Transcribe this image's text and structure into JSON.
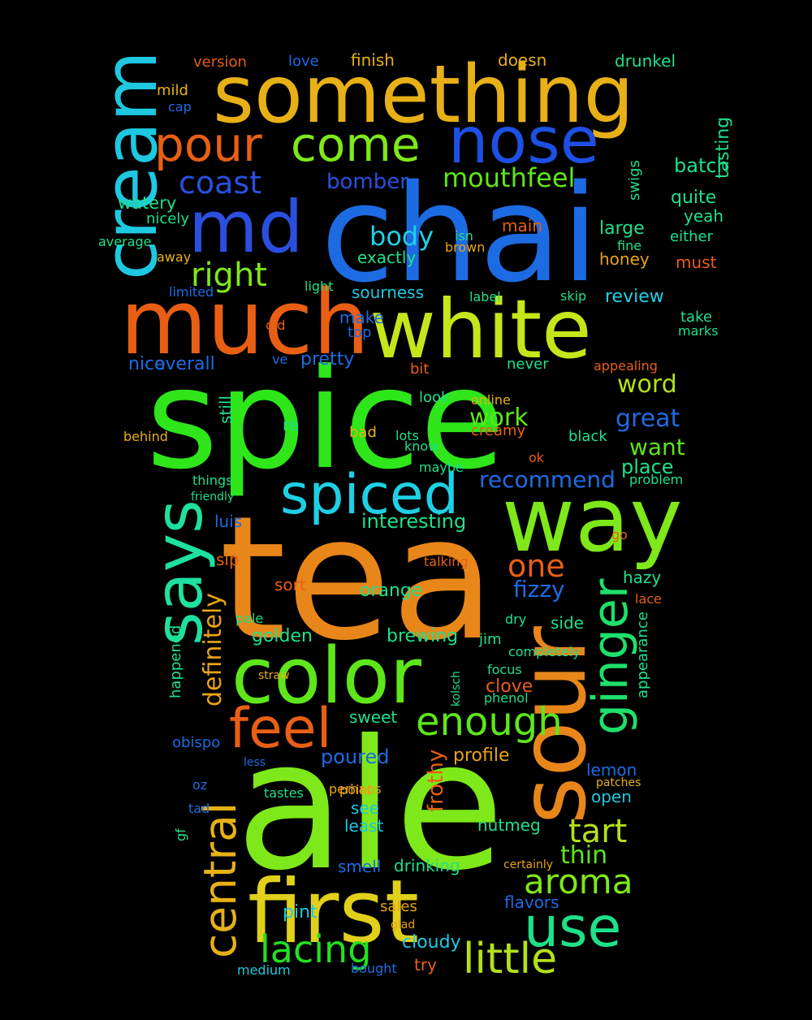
{
  "word_cloud": {
    "palette": [
      "#e8a317",
      "#e85f14",
      "#2a4fe0",
      "#1d6be3",
      "#7ee81a",
      "#22e022",
      "#1ec8e0",
      "#1ee08a",
      "#e0c81a",
      "#b4e01a"
    ],
    "words": [
      {
        "text": "tea",
        "color": "#e8861a"
      },
      {
        "text": "ale",
        "color": "#7ee81a"
      },
      {
        "text": "spice",
        "color": "#2ee61a"
      },
      {
        "text": "chai",
        "color": "#1d6be3"
      },
      {
        "text": "something",
        "color": "#e8b017"
      },
      {
        "text": "much",
        "color": "#e85f14"
      },
      {
        "text": "white",
        "color": "#c4e61a"
      },
      {
        "text": "way",
        "color": "#7ee81a"
      },
      {
        "text": "sour",
        "color": "#e8861a"
      },
      {
        "text": "first",
        "color": "#e0d01a"
      },
      {
        "text": "color",
        "color": "#5ee61a"
      },
      {
        "text": "cream",
        "color": "#1ec8e0"
      },
      {
        "text": "says",
        "color": "#1ee0a0"
      },
      {
        "text": "md",
        "color": "#2a4fe0"
      },
      {
        "text": "nose",
        "color": "#1d4fe3"
      },
      {
        "text": "spiced",
        "color": "#1ed0e6"
      },
      {
        "text": "use",
        "color": "#1ee08a"
      },
      {
        "text": "ginger",
        "color": "#1ee06a"
      },
      {
        "text": "central",
        "color": "#e8b017"
      },
      {
        "text": "feel",
        "color": "#e85f14"
      },
      {
        "text": "pour",
        "color": "#e85f14"
      },
      {
        "text": "come",
        "color": "#7ee81a"
      },
      {
        "text": "little",
        "color": "#b4e01a"
      },
      {
        "text": "enough",
        "color": "#5ee61a"
      },
      {
        "text": "lacing",
        "color": "#22e022"
      },
      {
        "text": "aroma",
        "color": "#7ee81a"
      },
      {
        "text": "right",
        "color": "#7ee81a"
      },
      {
        "text": "coast",
        "color": "#2a4fe0"
      },
      {
        "text": "mouthfeel",
        "color": "#5ee61a"
      },
      {
        "text": "one",
        "color": "#e85f14"
      },
      {
        "text": "recommend",
        "color": "#1d6be3"
      },
      {
        "text": "definitely",
        "color": "#e8a317"
      },
      {
        "text": "tart",
        "color": "#b4e01a"
      },
      {
        "text": "great",
        "color": "#1d6be3"
      },
      {
        "text": "want",
        "color": "#5ee61a"
      },
      {
        "text": "tasting",
        "color": "#1ee08a"
      },
      {
        "text": "thin",
        "color": "#5ee61a"
      },
      {
        "text": "work",
        "color": "#5ee61a"
      },
      {
        "text": "bomber",
        "color": "#2a4fe0"
      },
      {
        "text": "fizzy",
        "color": "#1d6be3"
      },
      {
        "text": "word",
        "color": "#b4e01a"
      },
      {
        "text": "body",
        "color": "#1ed0e6"
      },
      {
        "text": "interesting",
        "color": "#1ee08a"
      },
      {
        "text": "frothy",
        "color": "#e85f14"
      },
      {
        "text": "brewing",
        "color": "#1ee08a"
      },
      {
        "text": "pint",
        "color": "#1ec8e0"
      },
      {
        "text": "cloudy",
        "color": "#1ec8e0"
      },
      {
        "text": "batch",
        "color": "#1ee08a"
      },
      {
        "text": "poured",
        "color": "#1d6be3"
      },
      {
        "text": "sweet",
        "color": "#1ee08a"
      },
      {
        "text": "orange",
        "color": "#1ee08a"
      },
      {
        "text": "golden",
        "color": "#1ee08a"
      },
      {
        "text": "drinking",
        "color": "#1ee08a"
      },
      {
        "text": "nice",
        "color": "#1d6be3"
      },
      {
        "text": "overall",
        "color": "#1d6be3"
      },
      {
        "text": "pretty",
        "color": "#1d6be3"
      },
      {
        "text": "review",
        "color": "#1ed0e6"
      },
      {
        "text": "place",
        "color": "#1ee08a"
      },
      {
        "text": "large",
        "color": "#1ee08a"
      },
      {
        "text": "quite",
        "color": "#1ee08a"
      },
      {
        "text": "yeah",
        "color": "#1ee08a"
      },
      {
        "text": "watery",
        "color": "#1ee08a"
      },
      {
        "text": "nicely",
        "color": "#1ee08a"
      },
      {
        "text": "average",
        "color": "#1ee08a"
      },
      {
        "text": "exactly",
        "color": "#1ee08a"
      },
      {
        "text": "sourness",
        "color": "#1ec8e0"
      },
      {
        "text": "make",
        "color": "#1d6be3"
      },
      {
        "text": "clove",
        "color": "#e85f14"
      },
      {
        "text": "profile",
        "color": "#e8a317"
      },
      {
        "text": "smell",
        "color": "#1d6be3"
      },
      {
        "text": "flavors",
        "color": "#1d6be3"
      },
      {
        "text": "sales",
        "color": "#e8a317"
      },
      {
        "text": "see",
        "color": "#1ec8e0"
      },
      {
        "text": "least",
        "color": "#1ec8e0"
      },
      {
        "text": "nutmeg",
        "color": "#1ee08a"
      },
      {
        "text": "lemon",
        "color": "#1d6be3"
      },
      {
        "text": "open",
        "color": "#1ec8e0"
      },
      {
        "text": "try",
        "color": "#e85f14"
      },
      {
        "text": "bought",
        "color": "#1d6be3"
      },
      {
        "text": "medium",
        "color": "#1ec8e0"
      },
      {
        "text": "obispo",
        "color": "#1d6be3"
      },
      {
        "text": "happened",
        "color": "#1ee08a"
      },
      {
        "text": "appearance",
        "color": "#1ee08a"
      },
      {
        "text": "hazy",
        "color": "#1ee08a"
      },
      {
        "text": "side",
        "color": "#1ee08a"
      },
      {
        "text": "sip",
        "color": "#e85f14"
      },
      {
        "text": "sort",
        "color": "#e85f14"
      },
      {
        "text": "luis",
        "color": "#1d6be3"
      },
      {
        "text": "finish",
        "color": "#e8b017"
      },
      {
        "text": "doesn",
        "color": "#e8b017"
      },
      {
        "text": "drunkel",
        "color": "#1ee08a"
      },
      {
        "text": "love",
        "color": "#1d6be3"
      },
      {
        "text": "version",
        "color": "#e85f14"
      },
      {
        "text": "mild",
        "color": "#e8b017"
      },
      {
        "text": "cap",
        "color": "#1d6be3"
      },
      {
        "text": "swigs",
        "color": "#1ee08a"
      },
      {
        "text": "main",
        "color": "#e85f14"
      },
      {
        "text": "honey",
        "color": "#e8a317"
      },
      {
        "text": "must",
        "color": "#e85f14"
      },
      {
        "text": "either",
        "color": "#1ee08a"
      },
      {
        "text": "fine",
        "color": "#1ee08a"
      },
      {
        "text": "isn",
        "color": "#1ee08a"
      },
      {
        "text": "brown",
        "color": "#e8a317"
      },
      {
        "text": "light",
        "color": "#1ee08a"
      },
      {
        "text": "limited",
        "color": "#1d6be3"
      },
      {
        "text": "away",
        "color": "#e8b017"
      },
      {
        "text": "top",
        "color": "#1d6be3"
      },
      {
        "text": "old",
        "color": "#e85f14"
      },
      {
        "text": "bit",
        "color": "#e85f14"
      },
      {
        "text": "never",
        "color": "#1ee08a"
      },
      {
        "text": "appealing",
        "color": "#e85f14"
      },
      {
        "text": "take",
        "color": "#1ee08a"
      },
      {
        "text": "marks",
        "color": "#1ee08a"
      },
      {
        "text": "skip",
        "color": "#1ee08a"
      },
      {
        "text": "label",
        "color": "#1ee08a"
      },
      {
        "text": "still",
        "color": "#1ee08a"
      },
      {
        "text": "re",
        "color": "#1ee08a"
      },
      {
        "text": "ve",
        "color": "#1d6be3"
      },
      {
        "text": "look",
        "color": "#1ee08a"
      },
      {
        "text": "online",
        "color": "#e8b017"
      },
      {
        "text": "creamy",
        "color": "#e85f14"
      },
      {
        "text": "black",
        "color": "#1ee08a"
      },
      {
        "text": "bad",
        "color": "#e8b017"
      },
      {
        "text": "lots",
        "color": "#1ee08a"
      },
      {
        "text": "know",
        "color": "#1ee08a"
      },
      {
        "text": "behind",
        "color": "#e8b017"
      },
      {
        "text": "things",
        "color": "#1ee08a"
      },
      {
        "text": "friendly",
        "color": "#1ee08a"
      },
      {
        "text": "maybe",
        "color": "#1ee08a"
      },
      {
        "text": "problem",
        "color": "#1ee08a"
      },
      {
        "text": "ok",
        "color": "#e85f14"
      },
      {
        "text": "go",
        "color": "#e85f14"
      },
      {
        "text": "lace",
        "color": "#e85f14"
      },
      {
        "text": "dry",
        "color": "#1ee08a"
      },
      {
        "text": "jim",
        "color": "#1ee08a"
      },
      {
        "text": "completely",
        "color": "#1ee08a"
      },
      {
        "text": "focus",
        "color": "#1ee08a"
      },
      {
        "text": "phenol",
        "color": "#1ee08a"
      },
      {
        "text": "talking",
        "color": "#e85f14"
      },
      {
        "text": "pale",
        "color": "#1ee08a"
      },
      {
        "text": "perhaps",
        "color": "#e8a317"
      },
      {
        "text": "point",
        "color": "#e8a317"
      },
      {
        "text": "tastes",
        "color": "#1ee08a"
      },
      {
        "text": "less",
        "color": "#1d6be3"
      },
      {
        "text": "tad",
        "color": "#1d6be3"
      },
      {
        "text": "oz",
        "color": "#1d6be3"
      },
      {
        "text": "gf",
        "color": "#1ee08a"
      },
      {
        "text": "certainly",
        "color": "#e8a317"
      },
      {
        "text": "glad",
        "color": "#e8a317"
      },
      {
        "text": "patches",
        "color": "#e8b017"
      },
      {
        "text": "kolsch",
        "color": "#1ee08a"
      },
      {
        "text": "straw",
        "color": "#e8b017"
      }
    ]
  }
}
